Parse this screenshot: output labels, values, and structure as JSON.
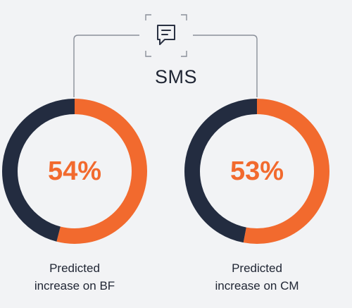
{
  "channel": {
    "label": "SMS",
    "icon": "chat-bubble-icon"
  },
  "colors": {
    "accent": "#f26a2e",
    "dark": "#232c40",
    "text": "#1f2533",
    "connector": "#8a8f99"
  },
  "chart_data": [
    {
      "type": "pie",
      "variant": "donut",
      "center_label": "54%",
      "caption": [
        "Predicted",
        "increase on BF"
      ],
      "slices": [
        {
          "segment": "predicted increase",
          "value": 54,
          "color": "#f26a2e"
        },
        {
          "segment": "remainder",
          "value": 46,
          "color": "#232c40"
        }
      ]
    },
    {
      "type": "pie",
      "variant": "donut",
      "center_label": "53%",
      "caption": [
        "Predicted",
        "increase on CM"
      ],
      "slices": [
        {
          "segment": "predicted increase",
          "value": 53,
          "color": "#f26a2e"
        },
        {
          "segment": "remainder",
          "value": 47,
          "color": "#232c40"
        }
      ]
    }
  ]
}
